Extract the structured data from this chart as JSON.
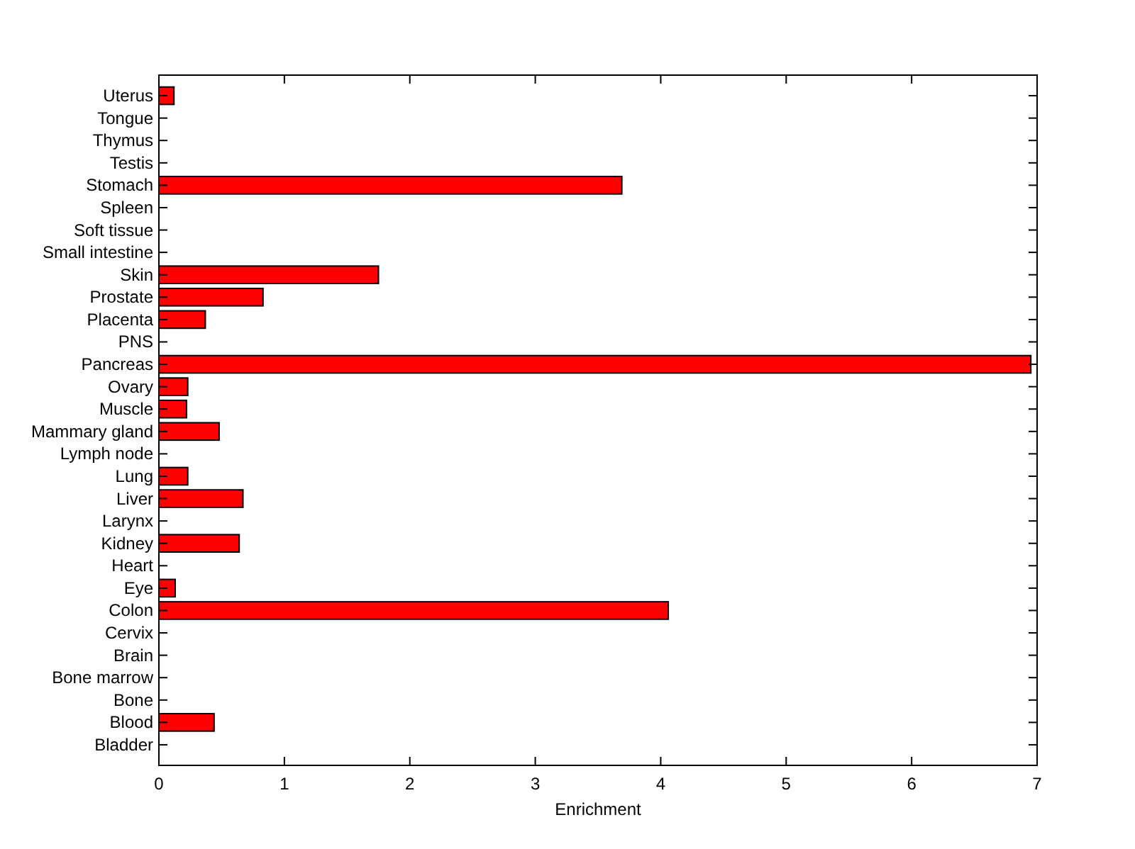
{
  "chart_data": {
    "type": "bar",
    "orientation": "horizontal",
    "xlabel": "Enrichment",
    "categories": [
      "Uterus",
      "Tongue",
      "Thymus",
      "Testis",
      "Stomach",
      "Spleen",
      "Soft tissue",
      "Small intestine",
      "Skin",
      "Prostate",
      "Placenta",
      "PNS",
      "Pancreas",
      "Ovary",
      "Muscle",
      "Mammary gland",
      "Lymph node",
      "Lung",
      "Liver",
      "Larynx",
      "Kidney",
      "Heart",
      "Eye",
      "Colon",
      "Cervix",
      "Brain",
      "Bone marrow",
      "Bone",
      "Blood",
      "Bladder"
    ],
    "values": [
      0.12,
      0,
      0,
      0,
      3.69,
      0,
      0,
      0,
      1.75,
      0.83,
      0.37,
      0,
      6.95,
      0.23,
      0.22,
      0.48,
      0,
      0.23,
      0.67,
      0,
      0.64,
      0,
      0.13,
      4.06,
      0,
      0,
      0,
      0,
      0.44,
      0
    ],
    "color": "#ff0000",
    "xlim": [
      0,
      7
    ],
    "xticks": [
      0,
      1,
      2,
      3,
      4,
      5,
      6,
      7
    ],
    "grid": false
  }
}
